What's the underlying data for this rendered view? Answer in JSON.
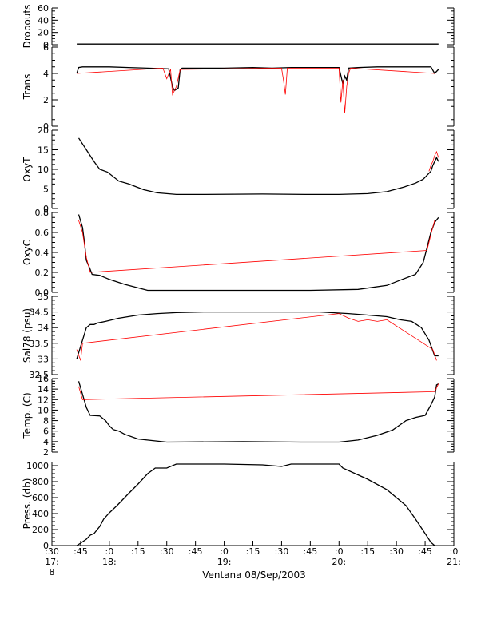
{
  "chart_data": {
    "type": "line",
    "bottom_text": {
      "time_major": [
        ":30",
        ":45",
        ":0",
        ":15",
        ":30",
        ":45",
        ":0",
        ":15",
        ":30",
        ":45",
        ":0",
        ":15",
        ":30",
        ":45",
        ":0"
      ],
      "hour_labels": [
        "17:",
        "18:",
        "19:",
        "20:",
        "21:"
      ],
      "extra_label": "8",
      "caption": "Ventana 08/Sep/2003"
    },
    "x_axis": {
      "range_minutes": [
        1050,
        1260
      ],
      "major_ticks_minutes": [
        1050,
        1065,
        1080,
        1095,
        1110,
        1125,
        1140,
        1155,
        1170,
        1185,
        1200,
        1215,
        1230,
        1245,
        1260
      ]
    },
    "panels": [
      {
        "ylabel": "Dropouts",
        "ylim": [
          0,
          60
        ],
        "yticks": [
          0,
          20,
          40,
          60
        ],
        "series": [
          {
            "color": "#000000",
            "x": [
              1063,
              1075,
              1095,
              1120,
              1150,
              1175,
              1200,
              1225,
              1250,
              1252
            ],
            "y": [
              1,
              1,
              1,
              1,
              1,
              1,
              1,
              1,
              1,
              1
            ]
          }
        ]
      },
      {
        "ylabel": "Trans",
        "ylim": [
          0,
          6
        ],
        "yticks": [
          0,
          2,
          4,
          6
        ],
        "series": [
          {
            "color": "#000000",
            "x": [
              1063,
              1064,
              1066,
              1070,
              1080,
              1090,
              1100,
              1111,
              1113,
              1114,
              1116,
              1117,
              1118,
              1125,
              1140,
              1155,
              1165,
              1175,
              1185,
              1200,
              1202,
              1203,
              1204,
              1205,
              1210,
              1220,
              1230,
              1240,
              1248,
              1250,
              1252
            ],
            "y": [
              4.0,
              4.45,
              4.5,
              4.5,
              4.5,
              4.45,
              4.4,
              4.35,
              3.0,
              2.7,
              2.9,
              4.3,
              4.4,
              4.4,
              4.4,
              4.45,
              4.4,
              4.45,
              4.45,
              4.45,
              3.2,
              3.8,
              3.5,
              4.4,
              4.45,
              4.5,
              4.5,
              4.5,
              4.5,
              4.0,
              4.3
            ]
          },
          {
            "color": "#ff0000",
            "x": [
              1063,
              1108,
              1110,
              1112,
              1113,
              1115,
              1117,
              1170,
              1171,
              1172,
              1173,
              1200,
              1201,
              1202,
              1203,
              1204,
              1205,
              1206,
              1250
            ],
            "y": [
              4.0,
              4.4,
              3.6,
              4.3,
              2.4,
              3.0,
              4.3,
              4.4,
              3.5,
              2.4,
              4.4,
              4.4,
              1.8,
              3.5,
              1.0,
              3.0,
              4.0,
              4.4,
              4.0
            ]
          }
        ]
      },
      {
        "ylabel": "OxyT",
        "ylim": [
          0,
          20
        ],
        "yticks": [
          0,
          5,
          10,
          15,
          20
        ],
        "series": [
          {
            "color": "#000000",
            "x": [
              1064,
              1068,
              1072,
              1075,
              1079,
              1085,
              1090,
              1098,
              1105,
              1115,
              1130,
              1160,
              1185,
              1200,
              1215,
              1225,
              1234,
              1240,
              1244,
              1248,
              1249,
              1251,
              1252
            ],
            "y": [
              18,
              15,
              12,
              10,
              9.3,
              7,
              6.3,
              4.8,
              4.0,
              3.6,
              3.6,
              3.7,
              3.6,
              3.6,
              3.8,
              4.3,
              5.5,
              6.5,
              7.5,
              9.5,
              11,
              13,
              12
            ]
          },
          {
            "color": "#ff0000",
            "x": [
              1247,
              1248,
              1249,
              1250,
              1251,
              1252
            ],
            "y": [
              9.5,
              11,
              12,
              13.5,
              14.5,
              13
            ]
          }
        ]
      },
      {
        "ylabel": "OxyC",
        "ylim": [
          0,
          0.8
        ],
        "yticks": [
          0.0,
          0.2,
          0.4,
          0.6,
          0.8
        ],
        "series": [
          {
            "color": "#000000",
            "x": [
              1064,
              1066,
              1067,
              1068,
              1070,
              1071,
              1075,
              1080,
              1088,
              1096,
              1100,
              1115,
              1150,
              1185,
              1210,
              1225,
              1233,
              1240,
              1244,
              1246,
              1248,
              1250,
              1252
            ],
            "y": [
              0.78,
              0.65,
              0.5,
              0.32,
              0.23,
              0.18,
              0.17,
              0.13,
              0.08,
              0.04,
              0.02,
              0.02,
              0.02,
              0.02,
              0.03,
              0.07,
              0.13,
              0.18,
              0.3,
              0.45,
              0.6,
              0.7,
              0.75
            ]
          },
          {
            "color": "#ff0000",
            "x": [
              1064,
              1066,
              1068,
              1070,
              1246,
              1248,
              1250
            ],
            "y": [
              0.72,
              0.6,
              0.35,
              0.2,
              0.42,
              0.58,
              0.72
            ]
          }
        ]
      },
      {
        "ylabel": "Sal78 (psu)",
        "ylim": [
          32.5,
          35.0
        ],
        "yticks": [
          32.5,
          33.0,
          33.5,
          34.0,
          34.5,
          35.0
        ],
        "series": [
          {
            "color": "#000000",
            "x": [
              1063,
              1064,
              1066,
              1068,
              1070,
              1072,
              1074,
              1078,
              1085,
              1095,
              1105,
              1115,
              1130,
              1160,
              1190,
              1205,
              1215,
              1225,
              1232,
              1238,
              1243,
              1247,
              1250,
              1252
            ],
            "y": [
              33.0,
              33.2,
              33.6,
              34.0,
              34.1,
              34.1,
              34.15,
              34.2,
              34.3,
              34.4,
              34.45,
              34.48,
              34.5,
              34.5,
              34.5,
              34.45,
              34.4,
              34.35,
              34.25,
              34.2,
              34.0,
              33.6,
              33.1,
              33.1
            ]
          },
          {
            "color": "#ff0000",
            "x": [
              1063,
              1065,
              1066,
              1200,
              1205,
              1210,
              1215,
              1220,
              1225,
              1249,
              1251
            ],
            "y": [
              33.3,
              32.95,
              33.5,
              34.45,
              34.3,
              34.2,
              34.25,
              34.2,
              34.25,
              33.3,
              32.95
            ]
          }
        ]
      },
      {
        "ylabel": "Temp. (C)",
        "ylim": [
          2,
          16
        ],
        "yticks": [
          2,
          4,
          6,
          8,
          10,
          12,
          14,
          16
        ],
        "series": [
          {
            "color": "#000000",
            "x": [
              1064,
              1066,
              1068,
              1070,
              1075,
              1078,
              1080,
              1082,
              1085,
              1088,
              1095,
              1110,
              1150,
              1180,
              1200,
              1210,
              1220,
              1228,
              1235,
              1240,
              1245,
              1248,
              1250,
              1251,
              1252
            ],
            "y": [
              15.5,
              13,
              10.5,
              9.0,
              8.9,
              8.0,
              7.0,
              6.3,
              6.0,
              5.4,
              4.5,
              3.9,
              4.0,
              3.9,
              3.9,
              4.3,
              5.2,
              6.2,
              8.0,
              8.6,
              9.0,
              11.0,
              12.5,
              14.8,
              15.0
            ]
          },
          {
            "color": "#ff0000",
            "x": [
              1064,
              1066,
              1250,
              1252
            ],
            "y": [
              14.5,
              12.0,
              13.5,
              15.0
            ]
          }
        ]
      },
      {
        "ylabel": "Press. (db)",
        "ylim": [
          0,
          1050
        ],
        "yticks": [
          0,
          200,
          400,
          600,
          800,
          1000
        ],
        "series": [
          {
            "color": "#000000",
            "x": [
              1063,
              1065,
              1068,
              1070,
              1072,
              1075,
              1077,
              1080,
              1084,
              1088,
              1090,
              1095,
              1100,
              1104,
              1110,
              1115,
              1125,
              1140,
              1160,
              1170,
              1175,
              1185,
              1195,
              1200,
              1202,
              1215,
              1225,
              1235,
              1240,
              1245,
              1248,
              1250
            ],
            "y": [
              0,
              30,
              80,
              130,
              150,
              240,
              330,
              410,
              500,
              600,
              650,
              770,
              900,
              970,
              970,
              1020,
              1020,
              1020,
              1010,
              990,
              1020,
              1020,
              1020,
              1020,
              970,
              830,
              700,
              500,
              330,
              150,
              40,
              0
            ]
          }
        ]
      }
    ]
  }
}
